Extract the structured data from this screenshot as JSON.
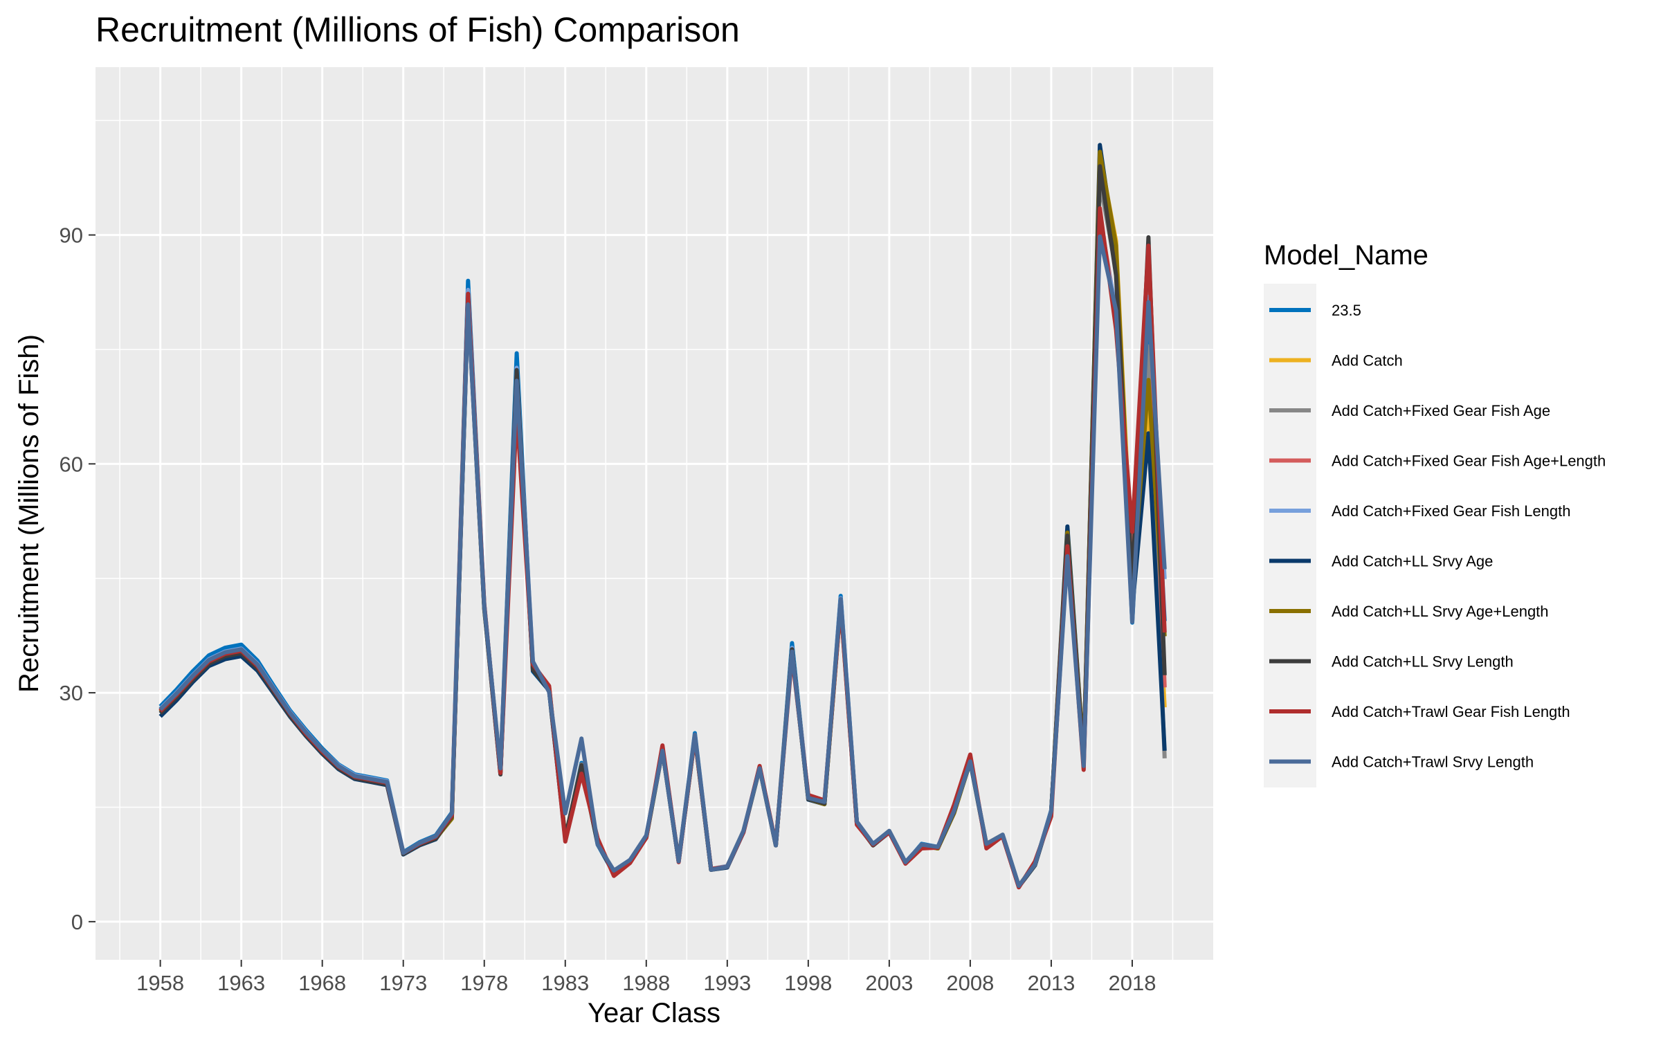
{
  "chart_data": {
    "type": "line",
    "title": "Recruitment (Millions of Fish) Comparison",
    "xlabel": "Year Class",
    "ylabel": "Recruitment (Millions of Fish)",
    "xlim": [
      1954,
      2023
    ],
    "ylim": [
      -5,
      112
    ],
    "x_ticks": [
      1958,
      1963,
      1968,
      1973,
      1978,
      1983,
      1988,
      1993,
      1998,
      2003,
      2008,
      2013,
      2018
    ],
    "y_ticks": [
      0,
      30,
      60,
      90
    ],
    "grid": true,
    "legend_title": "Model_Name",
    "legend_position": "right",
    "x": [
      1958,
      1959,
      1960,
      1961,
      1962,
      1963,
      1964,
      1965,
      1966,
      1967,
      1968,
      1969,
      1970,
      1971,
      1972,
      1973,
      1974,
      1975,
      1976,
      1977,
      1978,
      1979,
      1980,
      1981,
      1982,
      1983,
      1984,
      1985,
      1986,
      1987,
      1988,
      1989,
      1990,
      1991,
      1992,
      1993,
      1994,
      1995,
      1996,
      1997,
      1998,
      1999,
      2000,
      2001,
      2002,
      2003,
      2004,
      2005,
      2006,
      2007,
      2008,
      2009,
      2010,
      2011,
      2012,
      2013,
      2014,
      2015,
      2016,
      2017,
      2018,
      2019,
      2020
    ],
    "series": [
      {
        "name": "23.5",
        "color": "#0072bd",
        "values": [
          28.2,
          30.4,
          32.8,
          34.9,
          35.9,
          36.3,
          34.2,
          30.9,
          27.7,
          25.1,
          22.7,
          20.6,
          19.3,
          18.9,
          18.5,
          9.1,
          10.4,
          11.3,
          14.3,
          84.0,
          41.6,
          19.6,
          74.5,
          32.8,
          30.3,
          10.8,
          20.8,
          10.1,
          6.3,
          7.9,
          11.1,
          22.8,
          7.9,
          24.7,
          6.8,
          7.2,
          11.8,
          20.3,
          10.0,
          36.5,
          16.2,
          15.4,
          42.7,
          13.0,
          10.0,
          11.8,
          7.7,
          10.2,
          9.8,
          14.6,
          21.2,
          10.0,
          11.3,
          4.6,
          7.4,
          14.6,
          48.4,
          21.1,
          99.6,
          86.1,
          39.2,
          79.7,
          39.4
        ]
      },
      {
        "name": "Add Catch",
        "color": "#edb120",
        "values": [
          27.8,
          29.9,
          32.2,
          34.3,
          35.3,
          35.7,
          33.7,
          30.5,
          27.4,
          24.8,
          22.5,
          20.4,
          19.1,
          18.7,
          18.3,
          9.0,
          10.2,
          11.0,
          13.6,
          82.6,
          41.3,
          19.8,
          70.2,
          33.3,
          30.8,
          11.1,
          20.2,
          10.4,
          6.5,
          8.0,
          11.2,
          22.4,
          8.0,
          24.3,
          6.9,
          7.3,
          11.9,
          20.1,
          10.1,
          35.4,
          16.2,
          15.6,
          41.6,
          12.9,
          10.1,
          11.9,
          7.8,
          10.0,
          9.7,
          14.3,
          21.0,
          10.2,
          11.4,
          4.7,
          7.6,
          14.3,
          51.4,
          21.6,
          100.4,
          89.2,
          45.2,
          68.2,
          28.1
        ]
      },
      {
        "name": "Add Catch+Fixed Gear Fish Age",
        "color": "#878787",
        "values": [
          27.6,
          29.7,
          32.0,
          34.1,
          35.1,
          35.5,
          33.5,
          30.3,
          27.2,
          24.6,
          22.3,
          20.3,
          19.0,
          18.6,
          18.2,
          8.9,
          10.2,
          11.0,
          13.9,
          81.8,
          41.2,
          19.7,
          72.0,
          33.1,
          30.5,
          11.0,
          20.6,
          10.3,
          6.4,
          8.0,
          11.1,
          22.5,
          8.0,
          24.4,
          6.8,
          7.2,
          11.8,
          20.2,
          10.1,
          35.8,
          16.1,
          15.5,
          42.1,
          12.9,
          10.1,
          11.8,
          7.8,
          10.1,
          9.7,
          14.4,
          21.1,
          10.1,
          11.3,
          4.6,
          7.5,
          14.4,
          49.6,
          21.2,
          97.0,
          85.4,
          42.2,
          75.4,
          21.4
        ]
      },
      {
        "name": "Add Catch+Fixed Gear Fish Age+Length",
        "color": "#d45c5c",
        "values": [
          27.7,
          29.8,
          32.1,
          34.2,
          35.2,
          35.6,
          33.6,
          30.4,
          27.3,
          24.7,
          22.4,
          20.3,
          19.0,
          18.6,
          18.2,
          9.0,
          10.2,
          11.0,
          14.0,
          82.1,
          41.4,
          19.6,
          71.4,
          33.6,
          30.8,
          10.9,
          20.4,
          10.5,
          6.2,
          7.9,
          11.1,
          22.7,
          7.9,
          24.3,
          6.9,
          7.2,
          11.8,
          20.3,
          10.1,
          35.6,
          16.4,
          15.5,
          42.2,
          12.9,
          10.0,
          11.8,
          7.7,
          10.1,
          9.7,
          14.8,
          21.4,
          9.9,
          11.3,
          4.6,
          7.5,
          14.2,
          49.9,
          20.6,
          92.4,
          79.8,
          48.6,
          86.0,
          30.7
        ]
      },
      {
        "name": "Add Catch+Fixed Gear Fish Length",
        "color": "#77a0dc",
        "values": [
          27.9,
          30.0,
          32.3,
          34.4,
          35.4,
          35.8,
          33.8,
          30.6,
          27.5,
          24.9,
          22.5,
          20.5,
          19.2,
          18.8,
          18.4,
          9.0,
          10.3,
          11.2,
          14.1,
          82.8,
          41.5,
          19.6,
          72.6,
          33.9,
          30.6,
          11.0,
          20.3,
          10.2,
          6.6,
          8.1,
          11.2,
          22.6,
          8.1,
          24.5,
          6.9,
          7.3,
          11.9,
          20.3,
          10.1,
          35.9,
          16.3,
          15.6,
          42.4,
          13.0,
          10.1,
          11.9,
          7.8,
          10.1,
          9.8,
          14.5,
          21.1,
          10.1,
          11.4,
          4.7,
          7.5,
          14.5,
          48.9,
          21.3,
          91.2,
          80.3,
          40.4,
          81.9,
          44.9
        ]
      },
      {
        "name": "Add Catch+LL Srvy Age",
        "color": "#0a3a6b",
        "values": [
          26.9,
          29.0,
          31.4,
          33.5,
          34.4,
          34.8,
          32.9,
          29.9,
          26.9,
          24.3,
          22.0,
          20.0,
          18.7,
          18.3,
          17.9,
          8.8,
          10.0,
          10.8,
          13.7,
          81.2,
          41.0,
          19.4,
          71.0,
          32.9,
          30.3,
          10.9,
          20.3,
          10.2,
          6.4,
          7.9,
          11.0,
          22.4,
          7.9,
          24.2,
          6.8,
          7.1,
          11.7,
          20.1,
          10.0,
          35.6,
          16.0,
          15.4,
          41.9,
          12.8,
          10.0,
          11.7,
          7.7,
          10.0,
          9.6,
          14.3,
          20.9,
          10.0,
          11.2,
          4.6,
          7.4,
          14.3,
          51.8,
          21.5,
          101.8,
          87.1,
          41.0,
          64.0,
          22.4
        ]
      },
      {
        "name": "Add Catch+LL Srvy Age+Length",
        "color": "#8a7000",
        "values": [
          27.5,
          29.6,
          31.9,
          34.0,
          35.0,
          35.4,
          33.4,
          30.2,
          27.1,
          24.5,
          22.2,
          20.2,
          18.9,
          18.5,
          18.1,
          8.9,
          10.1,
          10.9,
          13.5,
          81.5,
          41.1,
          19.5,
          70.6,
          33.2,
          30.6,
          11.0,
          20.2,
          10.3,
          6.4,
          7.9,
          11.0,
          22.5,
          7.9,
          24.2,
          6.8,
          7.2,
          11.8,
          20.1,
          10.0,
          35.5,
          16.1,
          15.4,
          41.7,
          12.9,
          10.0,
          11.8,
          7.7,
          10.0,
          9.6,
          14.2,
          21.0,
          10.1,
          11.3,
          4.6,
          7.5,
          14.4,
          51.0,
          21.4,
          100.9,
          88.6,
          43.4,
          71.0,
          37.4
        ]
      },
      {
        "name": "Add Catch+LL Srvy Length",
        "color": "#3d3d3d",
        "values": [
          27.3,
          29.4,
          31.7,
          33.8,
          34.8,
          35.2,
          33.2,
          30.1,
          27.0,
          24.4,
          22.1,
          20.1,
          18.8,
          18.4,
          18.0,
          8.9,
          10.1,
          10.9,
          13.8,
          81.7,
          41.2,
          19.3,
          72.3,
          33.0,
          30.4,
          11.0,
          20.5,
          10.2,
          6.4,
          7.9,
          11.1,
          22.6,
          7.9,
          24.4,
          6.8,
          7.2,
          11.8,
          20.2,
          10.0,
          35.7,
          16.1,
          15.5,
          42.0,
          12.9,
          10.0,
          11.8,
          7.7,
          10.0,
          9.7,
          14.4,
          21.1,
          10.0,
          11.3,
          4.6,
          7.4,
          14.4,
          50.6,
          21.0,
          99.0,
          84.7,
          44.1,
          89.7,
          32.3
        ]
      },
      {
        "name": "Add Catch+Trawl Gear Fish Length",
        "color": "#b02e2e",
        "values": [
          27.6,
          29.7,
          32.0,
          34.1,
          35.1,
          35.5,
          33.5,
          30.4,
          27.3,
          24.6,
          22.3,
          20.3,
          19.0,
          18.6,
          18.2,
          9.0,
          10.2,
          11.1,
          13.9,
          82.3,
          41.6,
          19.5,
          67.1,
          33.7,
          30.9,
          10.5,
          19.4,
          10.9,
          6.0,
          7.7,
          11.0,
          23.1,
          7.8,
          24.2,
          6.9,
          7.2,
          11.7,
          20.4,
          10.1,
          34.9,
          16.6,
          15.9,
          41.5,
          12.7,
          10.1,
          11.7,
          7.6,
          9.6,
          9.7,
          15.3,
          21.9,
          9.6,
          11.2,
          4.5,
          7.9,
          13.8,
          49.2,
          19.9,
          93.5,
          77.6,
          51.1,
          88.6,
          37.9
        ]
      },
      {
        "name": "Add Catch+Trawl Srvy Length",
        "color": "#4a6b99",
        "values": [
          27.8,
          29.9,
          32.2,
          34.3,
          35.3,
          35.7,
          33.7,
          30.5,
          27.4,
          24.8,
          22.5,
          20.4,
          19.1,
          18.7,
          18.3,
          9.0,
          10.3,
          11.2,
          14.2,
          80.9,
          41.3,
          20.1,
          70.9,
          34.1,
          30.1,
          14.2,
          24.0,
          10.1,
          6.7,
          8.1,
          11.3,
          22.4,
          7.9,
          24.5,
          6.8,
          7.2,
          11.9,
          20.1,
          10.0,
          35.4,
          16.2,
          15.7,
          42.3,
          13.1,
          10.2,
          11.9,
          7.8,
          10.1,
          9.8,
          14.5,
          21.0,
          10.2,
          11.4,
          4.7,
          7.5,
          14.5,
          47.9,
          20.4,
          89.8,
          80.1,
          39.3,
          81.2,
          46.2
        ]
      }
    ]
  }
}
